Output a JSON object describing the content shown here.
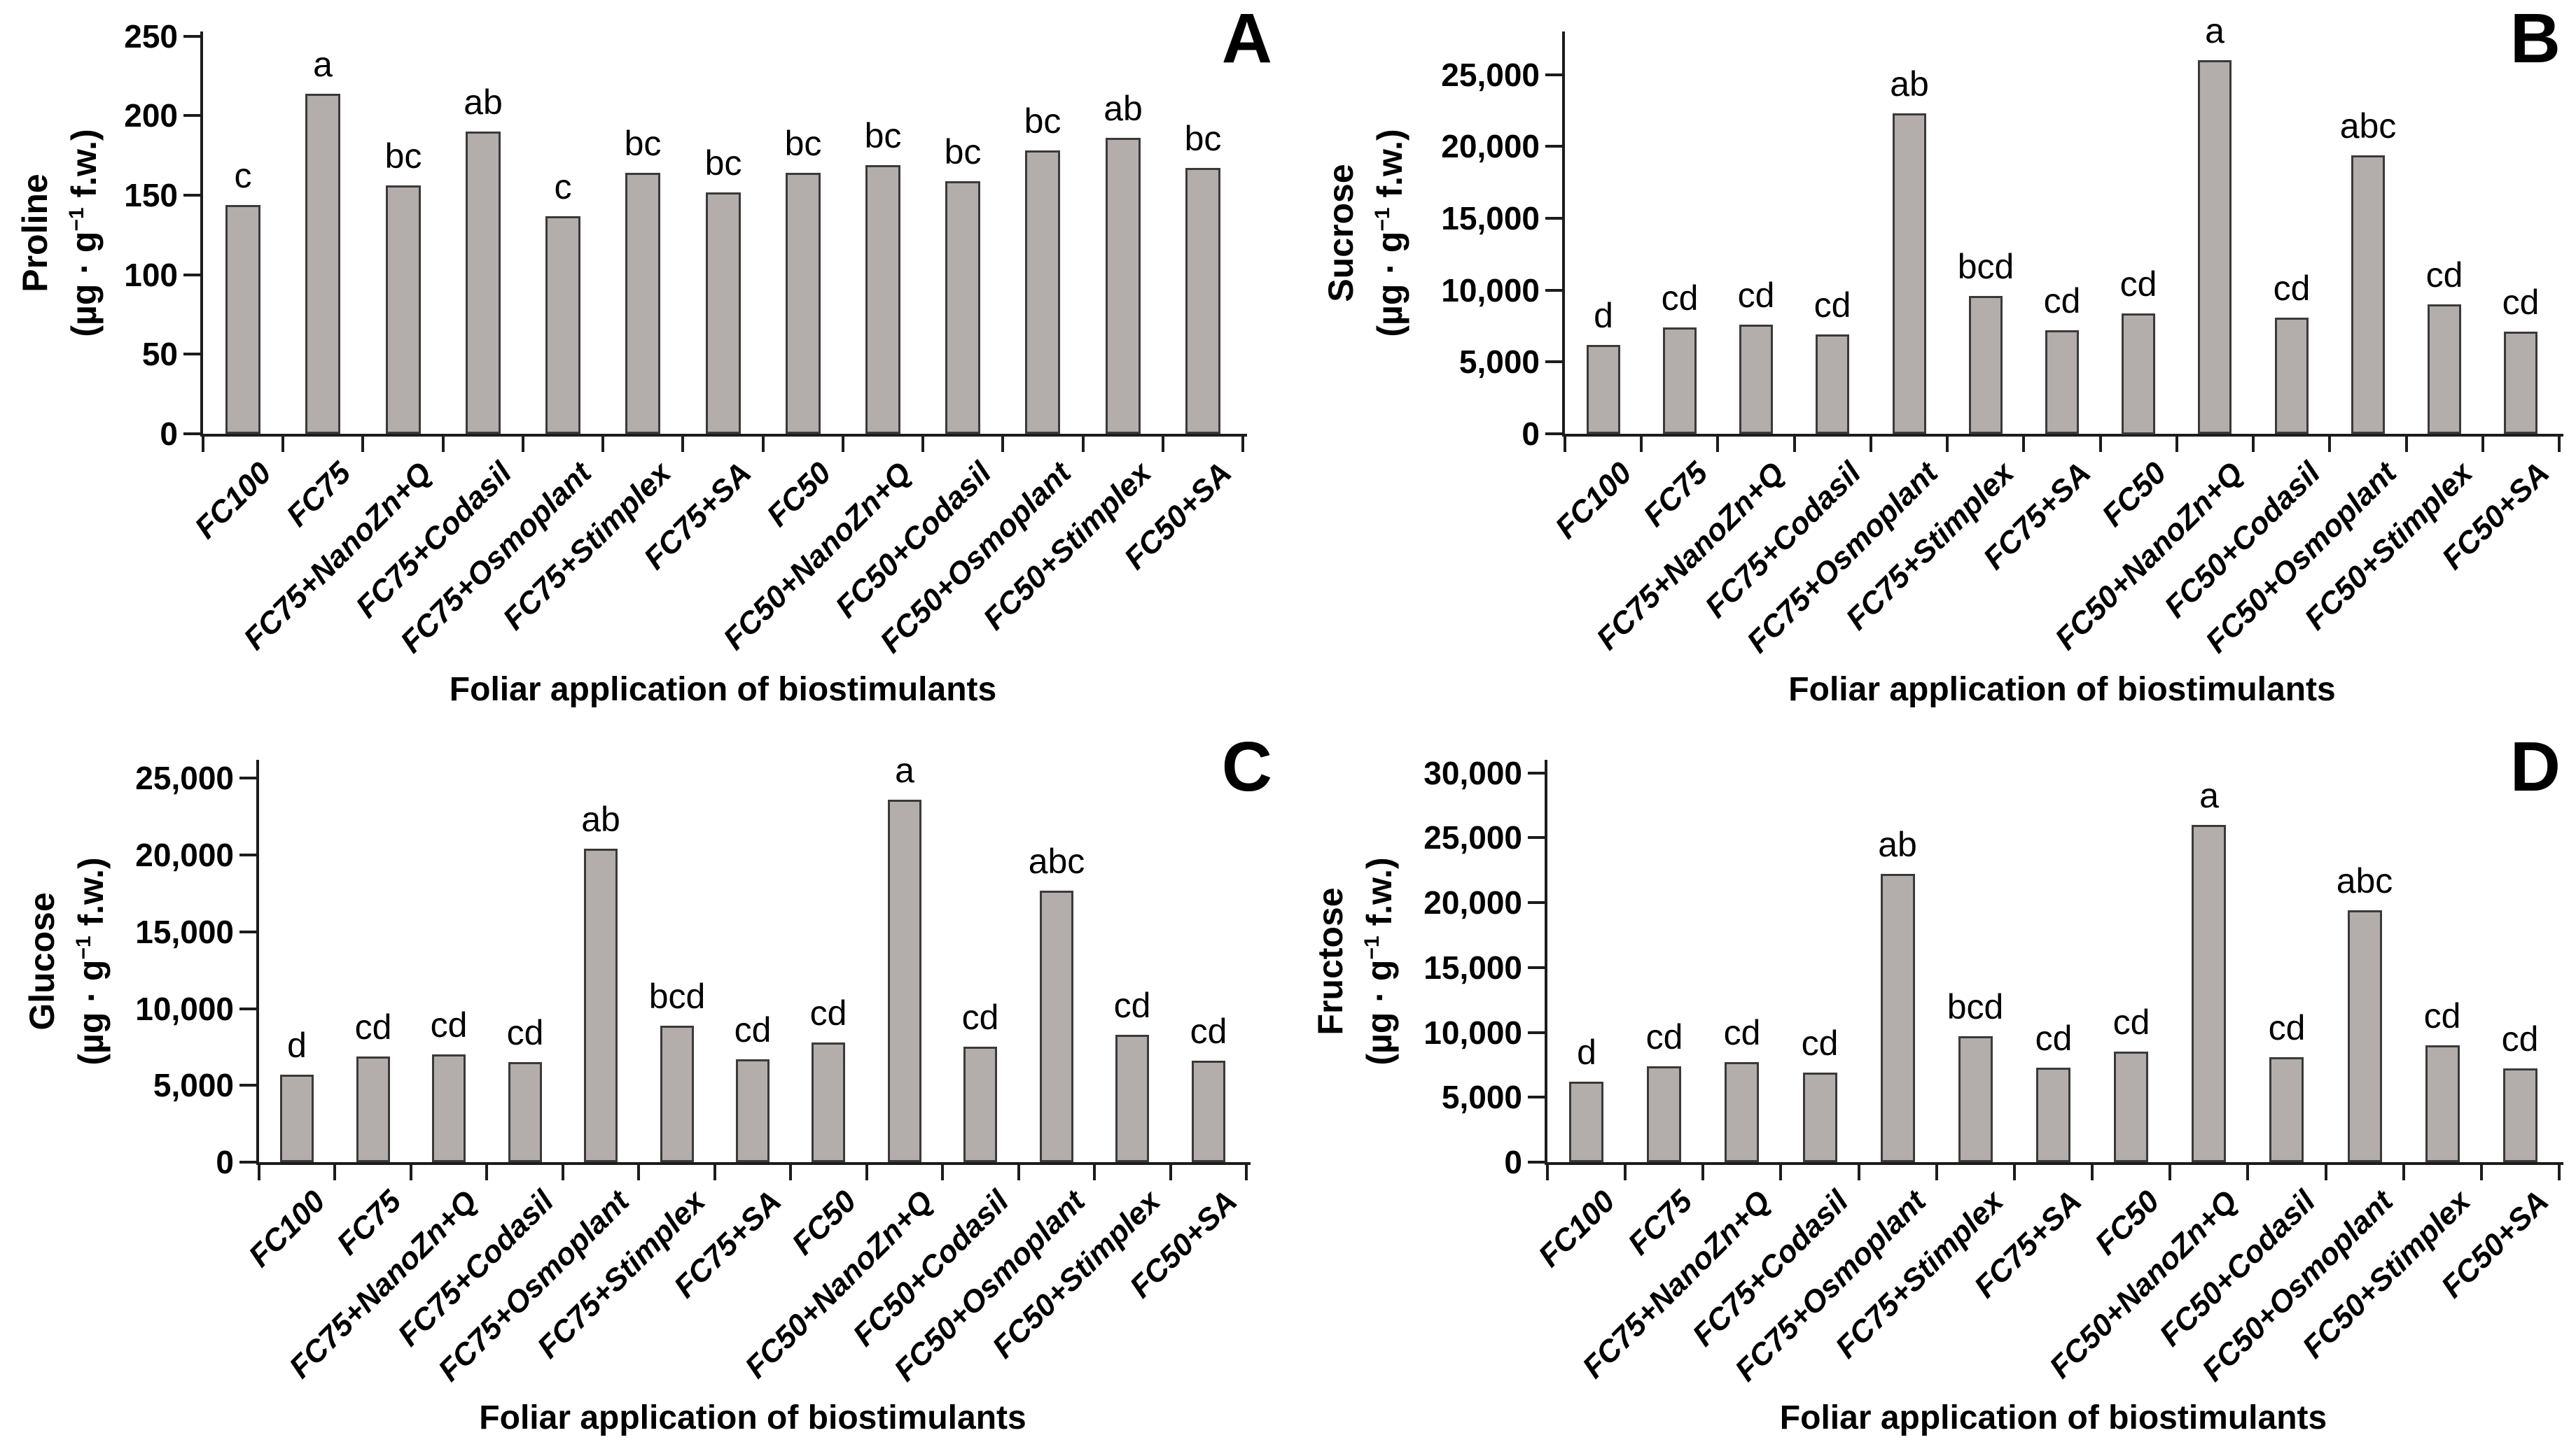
{
  "figure": {
    "background": "#ffffff",
    "bar_fill": "#b3aeab",
    "bar_border": "#3a3a3a",
    "axis_color": "#1c1c1c",
    "text_color": "#000000"
  },
  "chart_data": [
    {
      "type": "bar",
      "panel_label": "A",
      "ylabel_line1": "Proline",
      "unit_pre": "(µg · g",
      "unit_sup": "−1",
      "unit_post": " f.w.)",
      "xlabel": "Foliar application of biostimulants",
      "categories": [
        "FC100",
        "FC75",
        "FC75+NanoZn+Q",
        "FC75+Codasil",
        "FC75+Osmoplant",
        "FC75+Stimplex",
        "FC75+SA",
        "FC50",
        "FC50+NanoZn+Q",
        "FC50+Codasil",
        "FC50+Osmoplant",
        "FC50+Stimplex",
        "FC50+SA"
      ],
      "values": [
        144,
        214,
        156,
        190,
        137,
        164,
        152,
        164,
        169,
        159,
        178,
        186,
        167
      ],
      "sig_letters": [
        "c",
        "a",
        "bc",
        "ab",
        "c",
        "bc",
        "bc",
        "bc",
        "bc",
        "bc",
        "bc",
        "ab",
        "bc"
      ],
      "ylim": [
        0,
        250
      ],
      "tick_values": [
        0,
        50,
        100,
        150,
        200,
        250
      ],
      "tick_labels": [
        "0",
        "50",
        "100",
        "150",
        "200",
        "250"
      ],
      "grid": "off",
      "legend": "none",
      "layout": {
        "plot_left": 290,
        "plot_right": 1775,
        "plot_top": 45,
        "baseline": 620,
        "axis_top_value": 253,
        "ylabel_x": 85,
        "xtitle_y": 958
      }
    },
    {
      "type": "bar",
      "panel_label": "B",
      "ylabel_line1": "Sucrose",
      "unit_pre": "(µg · g",
      "unit_sup": "−1",
      "unit_post": " f.w.)",
      "xlabel": "Foliar application of biostimulants",
      "categories": [
        "FC100",
        "FC75",
        "FC75+NanoZn+Q",
        "FC75+Codasil",
        "FC75+Osmoplant",
        "FC75+Stimplex",
        "FC75+SA",
        "FC50",
        "FC50+NanoZn+Q",
        "FC50+Codasil",
        "FC50+Osmoplant",
        "FC50+Stimplex",
        "FC50+SA"
      ],
      "values": [
        6200,
        7400,
        7600,
        6900,
        22300,
        9600,
        7200,
        8400,
        26000,
        8100,
        19400,
        9000,
        7100
      ],
      "sig_letters": [
        "d",
        "cd",
        "cd",
        "cd",
        "ab",
        "bcd",
        "cd",
        "cd",
        "a",
        "cd",
        "abc",
        "cd",
        "cd"
      ],
      "ylim": [
        0,
        25000
      ],
      "tick_values": [
        0,
        5000,
        10000,
        15000,
        20000,
        25000
      ],
      "tick_labels": [
        "0",
        "5,000",
        "10,000",
        "15,000",
        "20,000",
        "25,000"
      ],
      "grid": "off",
      "legend": "none",
      "layout": {
        "plot_left": 395,
        "plot_right": 1815,
        "plot_top": 45,
        "baseline": 620,
        "axis_top_value": 28000,
        "ylabel_x": 110,
        "xtitle_y": 958
      }
    },
    {
      "type": "bar",
      "panel_label": "C",
      "ylabel_line1": "Glucose",
      "unit_pre": "(µg · g",
      "unit_sup": "−1",
      "unit_post": " f.w.)",
      "xlabel": "Foliar application of biostimulants",
      "categories": [
        "FC100",
        "FC75",
        "FC75+NanoZn+Q",
        "FC75+Codasil",
        "FC75+Osmoplant",
        "FC75+Stimplex",
        "FC75+SA",
        "FC50",
        "FC50+NanoZn+Q",
        "FC50+Codasil",
        "FC50+Osmoplant",
        "FC50+Stimplex",
        "FC50+SA"
      ],
      "values": [
        5700,
        6900,
        7000,
        6500,
        20400,
        8900,
        6700,
        7800,
        23600,
        7500,
        17700,
        8300,
        6600
      ],
      "sig_letters": [
        "d",
        "cd",
        "cd",
        "cd",
        "ab",
        "bcd",
        "cd",
        "cd",
        "a",
        "cd",
        "abc",
        "cd",
        "cd"
      ],
      "ylim": [
        0,
        25000
      ],
      "tick_values": [
        0,
        5000,
        10000,
        15000,
        20000,
        25000
      ],
      "tick_labels": [
        "0",
        "5,000",
        "10,000",
        "15,000",
        "20,000",
        "25,000"
      ],
      "grid": "off",
      "legend": "none",
      "layout": {
        "plot_left": 370,
        "plot_right": 1780,
        "plot_top": 45,
        "baseline": 620,
        "axis_top_value": 26200,
        "ylabel_x": 95,
        "xtitle_y": 958
      }
    },
    {
      "type": "bar",
      "panel_label": "D",
      "ylabel_line1": "Fructose",
      "unit_pre": "(µg · g",
      "unit_sup": "−1",
      "unit_post": " f.w.)",
      "xlabel": "Foliar application of biostimulants",
      "categories": [
        "FC100",
        "FC75",
        "FC75+NanoZn+Q",
        "FC75+Codasil",
        "FC75+Osmoplant",
        "FC75+Stimplex",
        "FC75+SA",
        "FC50",
        "FC50+NanoZn+Q",
        "FC50+Codasil",
        "FC50+Osmoplant",
        "FC50+Stimplex",
        "FC50+SA"
      ],
      "values": [
        6200,
        7400,
        7700,
        6900,
        22200,
        9700,
        7300,
        8500,
        26000,
        8100,
        19400,
        9000,
        7200
      ],
      "sig_letters": [
        "d",
        "cd",
        "cd",
        "cd",
        "ab",
        "bcd",
        "cd",
        "cd",
        "a",
        "cd",
        "abc",
        "cd",
        "cd"
      ],
      "ylim": [
        0,
        30000
      ],
      "tick_values": [
        0,
        5000,
        10000,
        15000,
        20000,
        25000,
        30000
      ],
      "tick_labels": [
        "0",
        "5,000",
        "10,000",
        "15,000",
        "20,000",
        "25,000",
        "30,000"
      ],
      "grid": "off",
      "legend": "none",
      "layout": {
        "plot_left": 370,
        "plot_right": 1815,
        "plot_top": 45,
        "baseline": 620,
        "axis_top_value": 31000,
        "ylabel_x": 95,
        "xtitle_y": 958
      }
    }
  ]
}
